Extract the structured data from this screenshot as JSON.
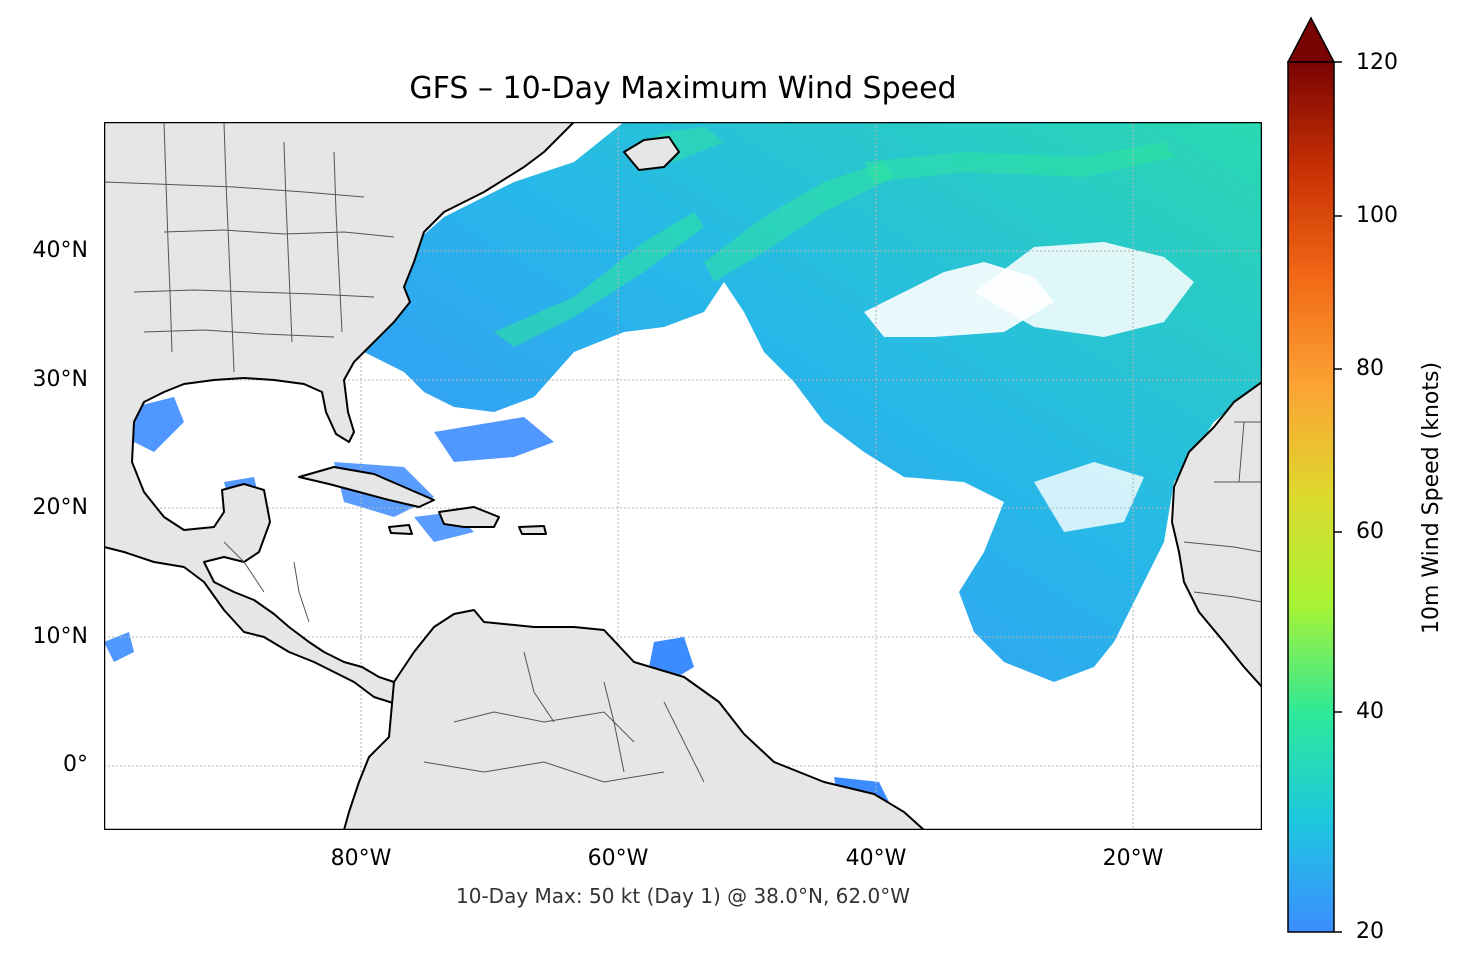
{
  "title": "GFS – 10-Day Maximum Wind Speed",
  "footer": "10-Day Max: 50 kt (Day 1) @ 38.0°N, 62.0°W",
  "colorbar": {
    "label": "10m Wind Speed (knots)",
    "ticks": [
      "120",
      "100",
      "80",
      "60",
      "40",
      "20"
    ],
    "range": [
      20,
      120
    ],
    "extend": "max",
    "colormap": [
      "#3d8cff",
      "#1fc6e0",
      "#2ee89a",
      "#a7f335",
      "#dcd92e",
      "#fca434",
      "#f26a17",
      "#c83103",
      "#7a0403"
    ]
  },
  "map": {
    "extent": {
      "lon": [
        -100,
        -10
      ],
      "lat": [
        -5,
        50
      ]
    },
    "gridlines": true,
    "land_color": "#e6e6e6",
    "ocean_color": "#ffffff",
    "lat_labels": [
      "40°N",
      "30°N",
      "20°N",
      "10°N",
      "0°"
    ],
    "lon_labels": [
      "80°W",
      "60°W",
      "40°W",
      "20°W"
    ]
  },
  "chart_data": {
    "type": "heatmap",
    "title": "GFS – 10-Day Maximum Wind Speed",
    "colorbar_label": "10m Wind Speed (knots)",
    "colorbar_ticks": [
      20,
      40,
      60,
      80,
      100,
      120
    ],
    "max": {
      "value": 50,
      "unit": "kt",
      "day": 1,
      "lat": 38.0,
      "lon": -62.0
    }
  }
}
